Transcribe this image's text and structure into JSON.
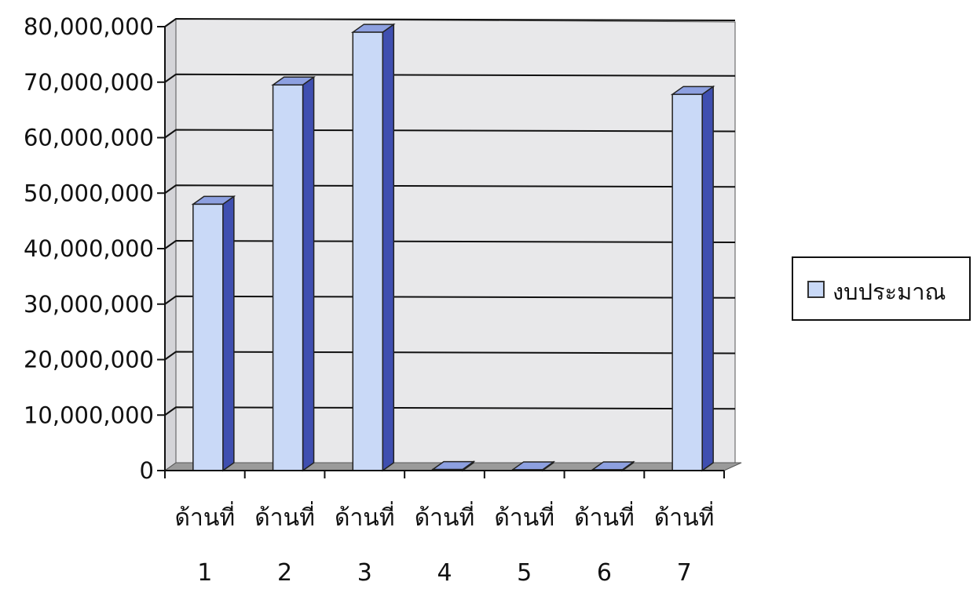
{
  "chart_data": {
    "type": "bar",
    "style": "3d-column",
    "categories": [
      {
        "line1": "ด้านที่",
        "line2": "1"
      },
      {
        "line1": "ด้านที่",
        "line2": "2"
      },
      {
        "line1": "ด้านที่",
        "line2": "3"
      },
      {
        "line1": "ด้านที่",
        "line2": "4"
      },
      {
        "line1": "ด้านที่",
        "line2": "5"
      },
      {
        "line1": "ด้านที่",
        "line2": "6"
      },
      {
        "line1": "ด้านที่",
        "line2": "7"
      }
    ],
    "series": [
      {
        "name": "งบประมาณ",
        "values": [
          48000000,
          69500000,
          79000000,
          200000,
          150000,
          150000,
          67800000
        ]
      }
    ],
    "yticks": [
      "0",
      "10,000,000",
      "20,000,000",
      "30,000,000",
      "40,000,000",
      "50,000,000",
      "60,000,000",
      "70,000,000",
      "80,000,000"
    ],
    "ylim": [
      0,
      80000000
    ],
    "grid": true,
    "legend": "right",
    "colors": {
      "bar_front": "#c9d9f7",
      "bar_side": "#3f4fb0",
      "bar_top": "#8da0e0",
      "wall": "#e8e8ea",
      "floor": "#9a9a9a",
      "grid": "#111111"
    }
  },
  "legend": {
    "label": "งบประมาณ"
  }
}
